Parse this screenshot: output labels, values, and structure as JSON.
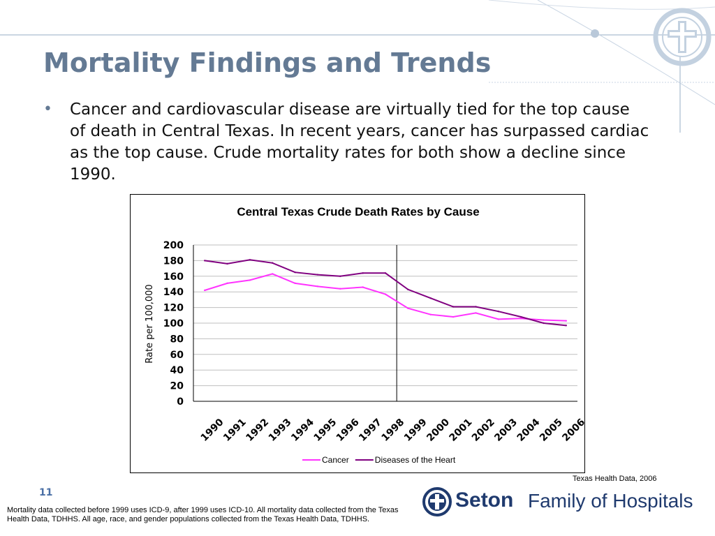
{
  "slide": {
    "title": "Mortality Findings and Trends",
    "bullet": "Cancer and cardiovascular disease are virtually tied for the top cause of death in Central Texas.  In recent years, cancer has surpassed cardiac as the top cause.  Crude mortality rates for both show a decline since 1990.",
    "source": "Texas Health Data, 2006",
    "page_number": "11",
    "footnote": "Mortality data collected before 1999 uses ICD-9, after 1999 uses ICD-10. All mortality data collected from the Texas Health Data, TDHHS.  All age, race, and gender populations collected from the Texas Health Data, TDHHS.",
    "logo": {
      "brand": "Seton",
      "rest": "Family of Hospitals"
    }
  },
  "colors": {
    "title": "#647a94",
    "cancer": "#ff33ff",
    "heart": "#800080",
    "logo": "#1f3a6e"
  },
  "chart_data": {
    "type": "line",
    "title": "Central Texas Crude Death Rates by Cause",
    "ylabel": "Rate per 100,000",
    "xlabel": "",
    "ylim": [
      0,
      200
    ],
    "yticks": [
      0,
      20,
      40,
      60,
      80,
      100,
      120,
      140,
      160,
      180,
      200
    ],
    "grid": true,
    "legend": "bottom",
    "categories": [
      "1990",
      "1991",
      "1992",
      "1993",
      "1994",
      "1995",
      "1996",
      "1997",
      "1998",
      "1999",
      "2000",
      "2001",
      "2002",
      "2003",
      "2004",
      "2005",
      "2006"
    ],
    "divider_after": "1998",
    "series": [
      {
        "name": "Cancer",
        "color": "#ff33ff",
        "values": [
          142,
          151,
          155,
          163,
          151,
          147,
          144,
          146,
          137,
          119,
          111,
          108,
          113,
          105,
          106,
          104,
          103
        ]
      },
      {
        "name": "Diseases of the Heart",
        "color": "#800080",
        "values": [
          180,
          176,
          181,
          177,
          165,
          162,
          160,
          164,
          164,
          143,
          132,
          121,
          121,
          115,
          108,
          100,
          97
        ]
      }
    ]
  }
}
